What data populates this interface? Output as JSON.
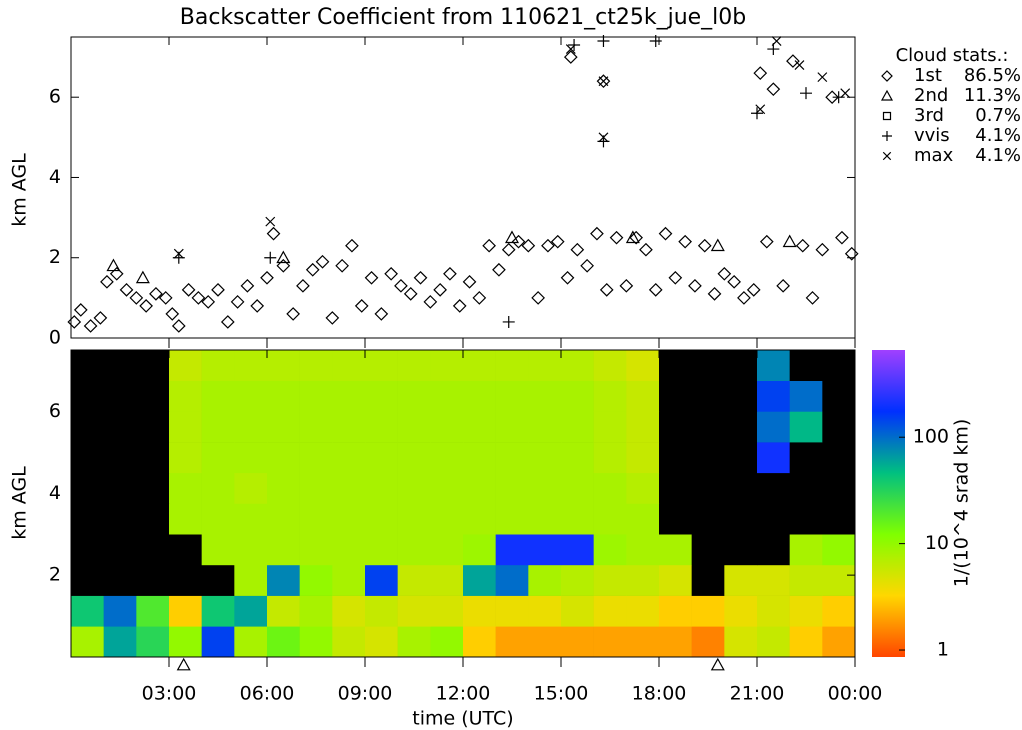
{
  "chart_data": [
    {
      "type": "scatter",
      "title": "Backscatter Coefficient from 110621_ct25k_jue_l0b",
      "ylabel": "km AGL",
      "xlim": [
        0,
        24
      ],
      "xticks": [
        3,
        6,
        9,
        12,
        15,
        18,
        21,
        24
      ],
      "ylim": [
        0,
        7.5
      ],
      "yticks": [
        0,
        2,
        4,
        6
      ],
      "legend_title": "Cloud stats.:",
      "legend": "right-outside",
      "series": [
        {
          "name": "1st",
          "marker": "diamond",
          "color": "#000000",
          "stat": {
            "value": 86.5,
            "label": "86.5%"
          },
          "x": [
            0.1,
            0.3,
            0.6,
            0.9,
            1.1,
            1.4,
            1.7,
            2.0,
            2.3,
            2.6,
            2.9,
            3.1,
            3.3,
            3.6,
            3.9,
            4.2,
            4.5,
            4.8,
            5.1,
            5.4,
            5.7,
            6.0,
            6.2,
            6.5,
            6.8,
            7.1,
            7.4,
            7.7,
            8.0,
            8.3,
            8.6,
            8.9,
            9.2,
            9.5,
            9.8,
            10.1,
            10.4,
            10.7,
            11.0,
            11.3,
            11.6,
            11.9,
            12.2,
            12.5,
            12.8,
            13.1,
            13.4,
            13.7,
            14.0,
            14.3,
            14.6,
            14.9,
            15.2,
            15.3,
            15.5,
            15.8,
            16.1,
            16.3,
            16.4,
            16.7,
            17.0,
            17.3,
            17.6,
            17.9,
            18.2,
            18.5,
            18.8,
            19.1,
            19.4,
            19.7,
            20.0,
            20.3,
            20.6,
            20.9,
            21.1,
            21.3,
            21.5,
            21.8,
            22.1,
            22.4,
            22.7,
            23.0,
            23.3,
            23.6,
            23.9
          ],
          "values": [
            0.4,
            0.7,
            0.3,
            0.5,
            1.4,
            1.6,
            1.2,
            1.0,
            0.8,
            1.1,
            1.0,
            0.6,
            0.3,
            1.2,
            1.0,
            0.9,
            1.2,
            0.4,
            0.9,
            1.3,
            0.8,
            1.5,
            2.6,
            1.8,
            0.6,
            1.3,
            1.7,
            1.9,
            0.5,
            1.8,
            2.3,
            0.8,
            1.5,
            0.6,
            1.6,
            1.3,
            1.1,
            1.5,
            0.9,
            1.2,
            1.6,
            0.8,
            1.4,
            1.0,
            2.3,
            1.7,
            2.2,
            2.4,
            2.3,
            1.0,
            2.3,
            2.4,
            1.5,
            7.0,
            2.2,
            1.8,
            2.6,
            6.4,
            1.2,
            2.5,
            1.3,
            2.5,
            2.2,
            1.2,
            2.6,
            1.5,
            2.4,
            1.3,
            2.3,
            1.1,
            1.6,
            1.4,
            1.0,
            1.2,
            6.6,
            2.4,
            6.2,
            1.3,
            6.9,
            2.3,
            1.0,
            2.2,
            6.0,
            2.5,
            2.1
          ]
        },
        {
          "name": "2nd",
          "marker": "triangle",
          "color": "#000000",
          "stat": {
            "value": 11.3,
            "label": "11.3%"
          },
          "x": [
            1.3,
            2.2,
            6.5,
            13.5,
            17.2,
            19.8,
            22.0
          ],
          "values": [
            1.8,
            1.5,
            2.0,
            2.5,
            2.5,
            2.3,
            2.4
          ]
        },
        {
          "name": "3rd",
          "marker": "square",
          "color": "#000000",
          "stat": {
            "value": 0.7,
            "label": "0.7%"
          },
          "x": [],
          "values": []
        },
        {
          "name": "vvis",
          "marker": "plus",
          "color": "#000000",
          "stat": {
            "value": 4.1,
            "label": "4.1%"
          },
          "x": [
            3.3,
            6.1,
            13.4,
            15.4,
            16.3,
            16.3,
            17.9,
            21.0,
            21.5,
            22.5,
            23.5
          ],
          "values": [
            2.0,
            2.0,
            0.4,
            7.3,
            7.4,
            4.9,
            7.4,
            5.6,
            7.2,
            6.1,
            6.0
          ]
        },
        {
          "name": "max",
          "marker": "cross",
          "color": "#000000",
          "stat": {
            "value": 4.1,
            "label": "4.1%"
          },
          "x": [
            3.3,
            6.1,
            15.3,
            16.3,
            16.3,
            21.1,
            21.6,
            22.3,
            23.0,
            23.7
          ],
          "values": [
            2.1,
            2.9,
            7.2,
            6.4,
            5.0,
            5.7,
            7.4,
            6.8,
            6.5,
            6.1
          ]
        }
      ]
    },
    {
      "type": "heatmap",
      "xlabel": "time (UTC)",
      "ylabel": "km AGL",
      "xlim": [
        0,
        24
      ],
      "xticks": [
        {
          "value": 3,
          "label": "03:00"
        },
        {
          "value": 6,
          "label": "06:00"
        },
        {
          "value": 9,
          "label": "09:00"
        },
        {
          "value": 12,
          "label": "12:00"
        },
        {
          "value": 15,
          "label": "15:00"
        },
        {
          "value": 18,
          "label": "18:00"
        },
        {
          "value": 21,
          "label": "21:00"
        },
        {
          "value": 24,
          "label": "00:00"
        }
      ],
      "ylim": [
        0,
        7.5
      ],
      "yticks": [
        2,
        4,
        6
      ],
      "x_edges": [
        0,
        1,
        2,
        3,
        4,
        5,
        6,
        7,
        8,
        9,
        10,
        11,
        12,
        13,
        14,
        15,
        16,
        17,
        18,
        19,
        20,
        21,
        22,
        23,
        24
      ],
      "y_edges": [
        0,
        0.75,
        1.5,
        2.25,
        3,
        3.75,
        4.5,
        5.25,
        6,
        6.75,
        7.5
      ],
      "values": [
        [
          8,
          60,
          30,
          10,
          150,
          8,
          15,
          10,
          6,
          5,
          8,
          10,
          3,
          2,
          2,
          2,
          2,
          2,
          2,
          1.5,
          5,
          6,
          3,
          2
        ],
        [
          40,
          100,
          20,
          3,
          40,
          60,
          6,
          8,
          5,
          6,
          5,
          5,
          4,
          4,
          4,
          5,
          4,
          4,
          3,
          3,
          4,
          5,
          4,
          3
        ],
        [
          null,
          null,
          null,
          null,
          null,
          8,
          80,
          10,
          8,
          150,
          6,
          6,
          60,
          100,
          8,
          7,
          6,
          6,
          5,
          null,
          5,
          5,
          6,
          6
        ],
        [
          null,
          null,
          null,
          null,
          8,
          8,
          8,
          8,
          8,
          8,
          8,
          8,
          9,
          200,
          200,
          200,
          9,
          8,
          8,
          null,
          null,
          null,
          8,
          10
        ],
        [
          null,
          null,
          null,
          8,
          8,
          8,
          8,
          8,
          8,
          8,
          8,
          8,
          8,
          8,
          8,
          8,
          8,
          8,
          null,
          null,
          null,
          null,
          null,
          null
        ],
        [
          null,
          null,
          null,
          8,
          8,
          7,
          8,
          8,
          8,
          8,
          8,
          8,
          8,
          8,
          8,
          8,
          8,
          7,
          null,
          null,
          null,
          null,
          null,
          null
        ],
        [
          null,
          null,
          null,
          7,
          8,
          8,
          8,
          8,
          8,
          8,
          8,
          8,
          8,
          8,
          8,
          8,
          7,
          6,
          null,
          null,
          null,
          200,
          null,
          null
        ],
        [
          null,
          null,
          null,
          7,
          8,
          8,
          8,
          8,
          8,
          8,
          8,
          8,
          8,
          8,
          8,
          8,
          7,
          6,
          null,
          null,
          null,
          100,
          50,
          null
        ],
        [
          null,
          null,
          null,
          7,
          8,
          8,
          8,
          8,
          8,
          8,
          8,
          8,
          8,
          8,
          8,
          8,
          7,
          6,
          null,
          null,
          null,
          150,
          100,
          null
        ],
        [
          null,
          null,
          null,
          6,
          7,
          7,
          7,
          7,
          7,
          7,
          7,
          7,
          7,
          7,
          7,
          7,
          6,
          5,
          null,
          null,
          null,
          80,
          null,
          null
        ]
      ],
      "null_color": "#000000",
      "markers_x": [
        3.45,
        19.8
      ],
      "colorbar": {
        "label": "1/(10^4 srad km)",
        "log": true,
        "clim": [
          0.86,
          660
        ],
        "cticks": [
          1,
          10,
          100
        ],
        "colorscale": [
          "#ff4500",
          "#ffd700",
          "#7fff00",
          "#00c080",
          "#0030ff",
          "#a040ff"
        ]
      }
    }
  ]
}
